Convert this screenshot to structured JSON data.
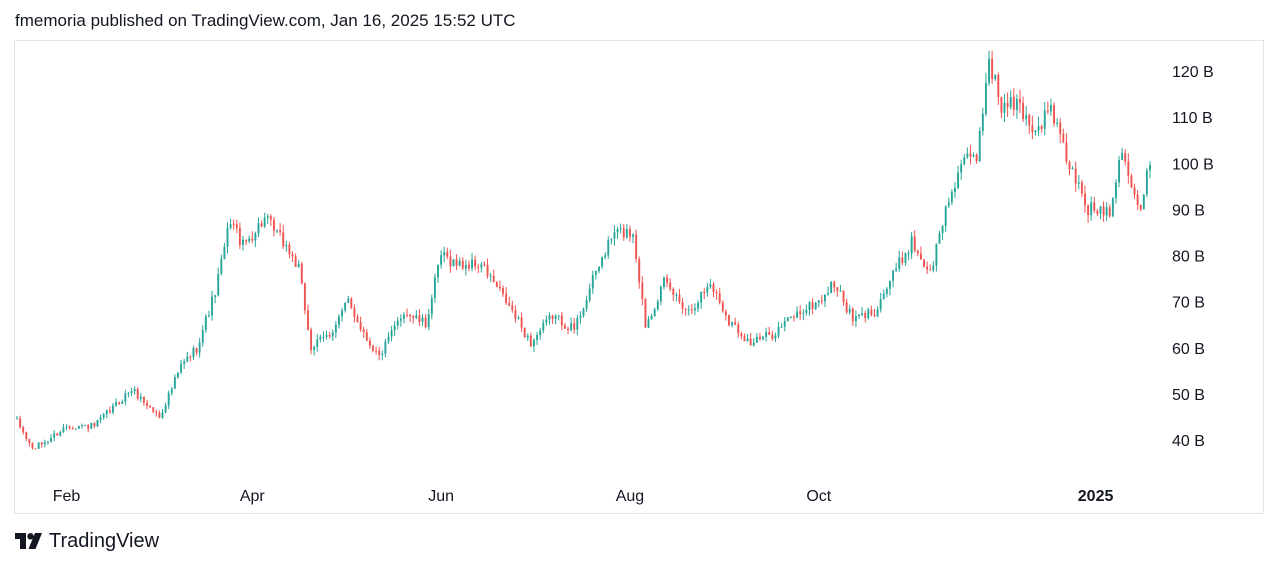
{
  "header": {
    "text": "fmemoria published on TradingView.com, Jan 16, 2025 15:52 UTC"
  },
  "footer": {
    "brand": "TradingView",
    "logo_icon": "tradingview-logo-icon"
  },
  "colors": {
    "up": "#26a69a",
    "down": "#ef5350",
    "text": "#131722",
    "border": "#e0e3eb"
  },
  "chart_data": {
    "type": "candlestick",
    "unit_suffix": "B",
    "y_ticks": [
      {
        "value": 120,
        "label": "120 B"
      },
      {
        "value": 110,
        "label": "110 B"
      },
      {
        "value": 100,
        "label": "100 B"
      },
      {
        "value": 90,
        "label": "90 B"
      },
      {
        "value": 80,
        "label": "80 B"
      },
      {
        "value": 70,
        "label": "70 B"
      },
      {
        "value": 60,
        "label": "60 B"
      },
      {
        "value": 50,
        "label": "50 B"
      },
      {
        "value": 40,
        "label": "40 B"
      }
    ],
    "x_ticks": [
      {
        "label": "Feb",
        "date": "2024-02-01",
        "bold": false
      },
      {
        "label": "Apr",
        "date": "2024-04-01",
        "bold": false
      },
      {
        "label": "Jun",
        "date": "2024-06-01",
        "bold": false
      },
      {
        "label": "Aug",
        "date": "2024-08-01",
        "bold": false
      },
      {
        "label": "Oct",
        "date": "2024-10-01",
        "bold": false
      },
      {
        "label": "2025",
        "date": "2025-01-01",
        "bold": true
      }
    ],
    "date_range": [
      "2024-01-16",
      "2025-01-16"
    ],
    "ylim": [
      33,
      126
    ],
    "grid": false,
    "trend_close": [
      [
        "2024-01-16",
        44
      ],
      [
        "2024-01-21",
        38
      ],
      [
        "2024-01-26",
        40
      ],
      [
        "2024-02-01",
        43
      ],
      [
        "2024-02-10",
        43
      ],
      [
        "2024-02-22",
        51
      ],
      [
        "2024-03-02",
        45
      ],
      [
        "2024-03-09",
        56
      ],
      [
        "2024-03-14",
        60
      ],
      [
        "2024-03-20",
        72
      ],
      [
        "2024-03-25",
        88
      ],
      [
        "2024-03-29",
        82
      ],
      [
        "2024-04-05",
        88
      ],
      [
        "2024-04-12",
        82
      ],
      [
        "2024-04-16",
        77
      ],
      [
        "2024-04-20",
        60
      ],
      [
        "2024-04-26",
        63
      ],
      [
        "2024-05-02",
        70
      ],
      [
        "2024-05-08",
        62
      ],
      [
        "2024-05-12",
        58
      ],
      [
        "2024-05-20",
        68
      ],
      [
        "2024-05-27",
        65
      ],
      [
        "2024-06-01",
        80
      ],
      [
        "2024-06-07",
        78
      ],
      [
        "2024-06-14",
        78
      ],
      [
        "2024-06-22",
        70
      ],
      [
        "2024-06-30",
        61
      ],
      [
        "2024-07-07",
        67
      ],
      [
        "2024-07-14",
        64
      ],
      [
        "2024-07-22",
        78
      ],
      [
        "2024-07-27",
        85
      ],
      [
        "2024-08-02",
        85
      ],
      [
        "2024-08-06",
        65
      ],
      [
        "2024-08-12",
        74
      ],
      [
        "2024-08-20",
        68
      ],
      [
        "2024-08-27",
        74
      ],
      [
        "2024-09-02",
        66
      ],
      [
        "2024-09-09",
        61
      ],
      [
        "2024-09-16",
        63
      ],
      [
        "2024-09-23",
        67
      ],
      [
        "2024-10-01",
        70
      ],
      [
        "2024-10-06",
        74
      ],
      [
        "2024-10-12",
        66
      ],
      [
        "2024-10-19",
        68
      ],
      [
        "2024-10-26",
        77
      ],
      [
        "2024-10-31",
        83
      ],
      [
        "2024-11-06",
        76
      ],
      [
        "2024-11-11",
        90
      ],
      [
        "2024-11-16",
        100
      ],
      [
        "2024-11-21",
        101
      ],
      [
        "2024-11-25",
        123
      ],
      [
        "2024-11-29",
        112
      ],
      [
        "2024-12-04",
        113
      ],
      [
        "2024-12-10",
        107
      ],
      [
        "2024-12-15",
        112
      ],
      [
        "2024-12-20",
        101
      ],
      [
        "2024-12-27",
        90
      ],
      [
        "2025-01-03",
        90
      ],
      [
        "2025-01-07",
        104
      ],
      [
        "2025-01-10",
        95
      ],
      [
        "2025-01-13",
        89
      ],
      [
        "2025-01-16",
        101
      ]
    ]
  }
}
